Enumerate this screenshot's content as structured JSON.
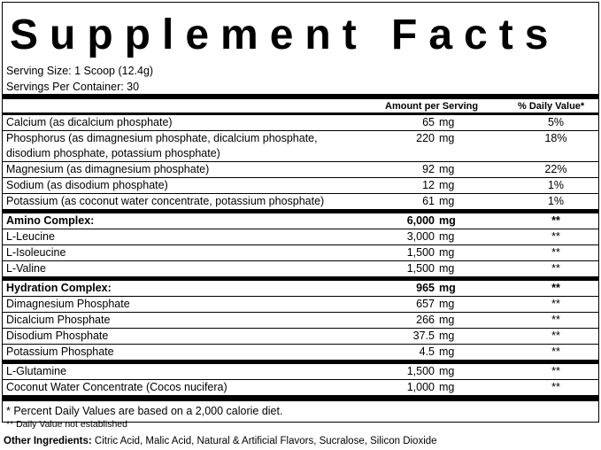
{
  "title": "Supplement Facts",
  "serving_size": "Serving Size: 1 Scoop (12.4g)",
  "servings_per_container": "Servings Per Container: 30",
  "header": {
    "amount": "Amount per Serving",
    "dv": "% Daily Value*"
  },
  "groups": [
    [
      {
        "name": "Calcium (as dicalcium phosphate)",
        "amount": "65",
        "unit": "mg",
        "dv": "5%"
      },
      {
        "name": "Phosphorus (as dimagnesium phosphate, dicalcium phosphate, disodium phosphate, potassium phosphate)",
        "amount": "220",
        "unit": "mg",
        "dv": "18%"
      },
      {
        "name": "Magnesium (as dimagnesium phosphate)",
        "amount": "92",
        "unit": "mg",
        "dv": "22%"
      },
      {
        "name": "Sodium (as disodium phosphate)",
        "amount": "12",
        "unit": "mg",
        "dv": "1%"
      },
      {
        "name": "Potassium (as coconut water concentrate, potassium phosphate)",
        "amount": "61",
        "unit": "mg",
        "dv": "1%"
      }
    ],
    [
      {
        "name": "Amino Complex:",
        "amount": "6,000",
        "unit": "mg",
        "dv": "**",
        "bold": true
      },
      {
        "name": "L-Leucine",
        "amount": "3,000",
        "unit": "mg",
        "dv": "**"
      },
      {
        "name": "L-Isoleucine",
        "amount": "1,500",
        "unit": "mg",
        "dv": "**"
      },
      {
        "name": "L-Valine",
        "amount": "1,500",
        "unit": "mg",
        "dv": "**"
      }
    ],
    [
      {
        "name": "Hydration Complex:",
        "amount": "965",
        "unit": "mg",
        "dv": "**",
        "bold": true
      },
      {
        "name": "Dimagnesium Phosphate",
        "amount": "657",
        "unit": "mg",
        "dv": "**"
      },
      {
        "name": "Dicalcium Phosphate",
        "amount": "266",
        "unit": "mg",
        "dv": "**"
      },
      {
        "name": "Disodium Phosphate",
        "amount": "37.5",
        "unit": "mg",
        "dv": "**"
      },
      {
        "name": "Potassium Phosphate",
        "amount": "4.5",
        "unit": "mg",
        "dv": "**"
      }
    ],
    [
      {
        "name": "L-Glutamine",
        "amount": "1,500",
        "unit": "mg",
        "dv": "**"
      },
      {
        "name": "Coconut Water Concentrate (Cocos nucifera)",
        "amount": "1,000",
        "unit": "mg",
        "dv": "**"
      }
    ]
  ],
  "footnotes": [
    "* Percent Daily Values are based on a 2,000 calorie diet.",
    "** Daily Value not established"
  ],
  "other_ingredients": {
    "label": "Other Ingredients:",
    "text": " Citric Acid, Malic Acid, Natural & Artificial Flavors, Sucralose, Silicon Dioxide"
  }
}
